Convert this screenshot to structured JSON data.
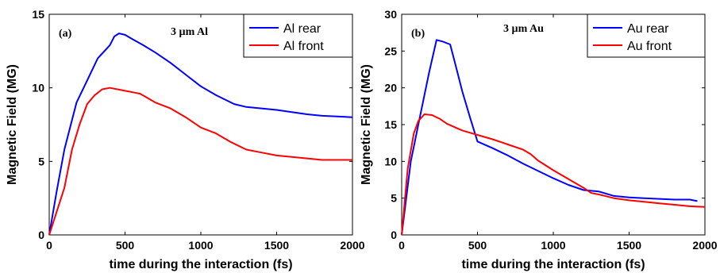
{
  "chart_data": [
    {
      "type": "line",
      "panel_label": "(a)",
      "sample_label": "3 µm Al",
      "xlabel": "time during the interaction (fs)",
      "ylabel": "Magnetic Field (MG)",
      "xlim": [
        0,
        2000
      ],
      "ylim": [
        0,
        15
      ],
      "xticks": [
        0,
        500,
        1000,
        1500,
        2000
      ],
      "yticks": [
        0,
        5,
        10,
        15
      ],
      "grid": false,
      "legend_position": "top-right",
      "series": [
        {
          "name": "Al rear",
          "color": "#0000ff",
          "x": [
            0,
            50,
            100,
            180,
            250,
            320,
            400,
            430,
            460,
            500,
            550,
            620,
            700,
            800,
            900,
            1000,
            1100,
            1220,
            1300,
            1400,
            1500,
            1600,
            1700,
            1800,
            1900,
            2000
          ],
          "y": [
            0,
            3.0,
            5.8,
            9.0,
            10.5,
            12.0,
            12.9,
            13.5,
            13.7,
            13.6,
            13.3,
            12.9,
            12.4,
            11.7,
            10.9,
            10.1,
            9.5,
            8.9,
            8.7,
            8.6,
            8.5,
            8.35,
            8.2,
            8.1,
            8.05,
            8.0
          ]
        },
        {
          "name": "Al front",
          "color": "#ff0000",
          "x": [
            0,
            100,
            150,
            200,
            250,
            300,
            350,
            400,
            450,
            500,
            550,
            600,
            650,
            700,
            800,
            900,
            1000,
            1100,
            1200,
            1300,
            1400,
            1500,
            1600,
            1700,
            1800,
            1900,
            2000
          ],
          "y": [
            0,
            3.2,
            5.8,
            7.5,
            8.9,
            9.5,
            9.9,
            10.0,
            9.9,
            9.8,
            9.7,
            9.6,
            9.3,
            9.0,
            8.6,
            8.0,
            7.3,
            6.9,
            6.3,
            5.8,
            5.6,
            5.4,
            5.3,
            5.2,
            5.1,
            5.1,
            5.1
          ]
        }
      ]
    },
    {
      "type": "line",
      "panel_label": "(b)",
      "sample_label": "3 µm Au",
      "xlabel": "time during the interaction (fs)",
      "ylabel": "Magnetic Field (MG)",
      "xlim": [
        0,
        2000
      ],
      "ylim": [
        0,
        30
      ],
      "xticks": [
        0,
        500,
        1000,
        1500,
        2000
      ],
      "yticks": [
        0,
        5,
        10,
        15,
        20,
        25,
        30
      ],
      "grid": false,
      "legend_position": "top-right",
      "series": [
        {
          "name": "Au rear",
          "color": "#0000ff",
          "x": [
            0,
            60,
            120,
            180,
            230,
            270,
            320,
            350,
            400,
            450,
            500,
            600,
            700,
            800,
            900,
            1000,
            1100,
            1200,
            1300,
            1400,
            1500,
            1600,
            1700,
            1800,
            1900,
            1950
          ],
          "y": [
            0,
            10,
            16,
            22,
            26.5,
            26.3,
            25.9,
            23.5,
            19.5,
            16,
            12.7,
            11.8,
            10.8,
            9.7,
            8.7,
            7.7,
            6.8,
            6.1,
            5.9,
            5.3,
            5.1,
            5.0,
            4.9,
            4.8,
            4.8,
            4.6
          ]
        },
        {
          "name": "Au front",
          "color": "#ff0000",
          "x": [
            0,
            40,
            80,
            110,
            150,
            200,
            250,
            300,
            400,
            500,
            600,
            700,
            800,
            850,
            900,
            1000,
            1100,
            1200,
            1250,
            1300,
            1400,
            1500,
            1600,
            1700,
            1800,
            1900,
            2000
          ],
          "y": [
            0,
            9,
            13.8,
            15.5,
            16.4,
            16.3,
            15.8,
            15.1,
            14.2,
            13.6,
            13.0,
            12.3,
            11.6,
            11.0,
            10.1,
            8.8,
            7.6,
            6.4,
            5.7,
            5.5,
            5.0,
            4.7,
            4.5,
            4.3,
            4.1,
            3.9,
            3.8
          ]
        }
      ]
    }
  ]
}
